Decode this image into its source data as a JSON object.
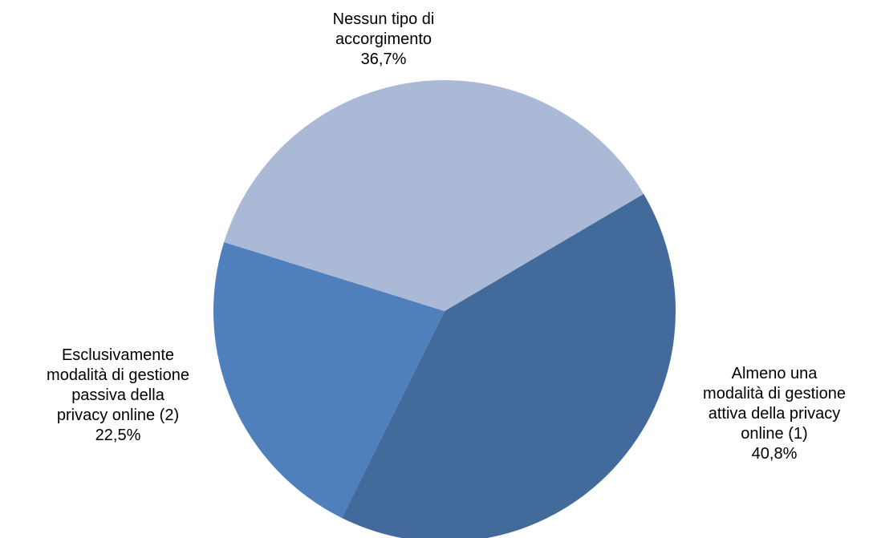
{
  "chart_data": {
    "type": "pie",
    "slices": [
      {
        "label_lines": [
          "Almeno una",
          "modalità di gestione",
          "attiva della privacy",
          "online (1)"
        ],
        "value": 40.8,
        "value_label": "40,8%",
        "color": "#426A9B"
      },
      {
        "label_lines": [
          "Esclusivamente",
          "modalità di gestione",
          "passiva della",
          "privacy online (2)"
        ],
        "value": 22.5,
        "value_label": "22,5%",
        "color": "#4F80BB"
      },
      {
        "label_lines": [
          "Nessun tipo di",
          "accorgimento"
        ],
        "value": 36.7,
        "value_label": "36,7%",
        "color": "#AAB9D6"
      }
    ],
    "legend": "none"
  }
}
